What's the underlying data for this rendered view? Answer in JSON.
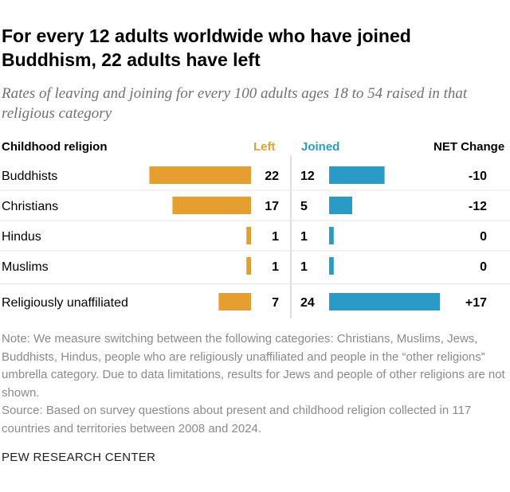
{
  "title": "For every 12 adults worldwide who have joined Buddhism, 22 adults have left",
  "subtitle": "Rates of leaving and joining for every 100 adults ages 18 to 54 raised in that religious category",
  "headers": {
    "category": "Childhood religion",
    "left": "Left",
    "joined": "Joined",
    "net": "NET Change"
  },
  "colors": {
    "left": "#e49f30",
    "joined": "#2a9bc6",
    "divider": "#bdbdbd"
  },
  "chart_data": {
    "type": "bar",
    "categories": [
      "Buddhists",
      "Christians",
      "Hindus",
      "Muslims",
      "Religiously unaffiliated"
    ],
    "series": [
      {
        "name": "Left",
        "values": [
          22,
          17,
          1,
          1,
          7
        ]
      },
      {
        "name": "Joined",
        "values": [
          12,
          5,
          1,
          1,
          24
        ]
      }
    ],
    "net_change": [
      "-10",
      "-12",
      "0",
      "0",
      "+17"
    ]
  },
  "note": "Note: We measure switching between the following categories: Christians, Muslims, Jews, Buddhists, Hindus, people who are religiously unaffiliated and people in the “other religions” umbrella category. Due to data limitations, results for Jews and people of other religions are not shown.",
  "source": "Source: Based on survey questions about present and childhood religion collected in 117 countries and territories between 2008 and 2024.",
  "brand": "PEW RESEARCH CENTER"
}
